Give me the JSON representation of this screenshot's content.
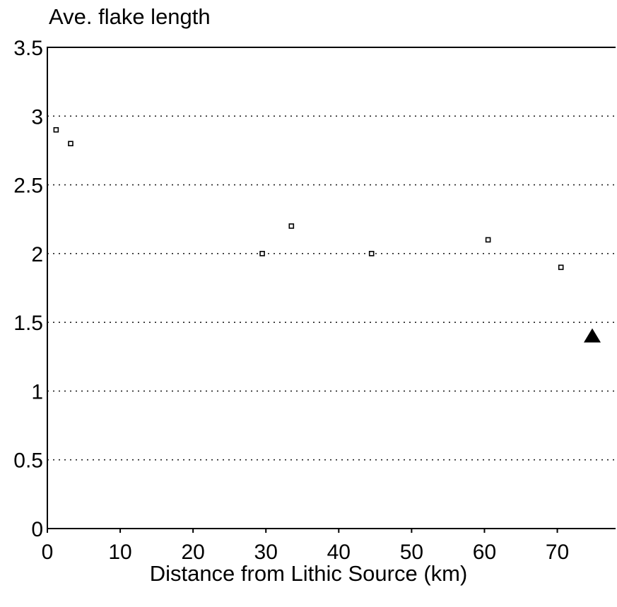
{
  "chart_data": {
    "type": "scatter",
    "ylabel": "Ave. flake length",
    "xlabel": "Distance from Lithic Source (km)",
    "xlim": [
      0,
      78
    ],
    "ylim": [
      0,
      3.5
    ],
    "x_ticks": [
      0,
      10,
      20,
      30,
      40,
      50,
      60,
      70
    ],
    "y_ticks": [
      0,
      0.5,
      1,
      1.5,
      2,
      2.5,
      3,
      3.5
    ],
    "y_tick_labels": [
      "0",
      "0.5",
      "1",
      "1.5",
      "2",
      "2.5",
      "3",
      "3.5"
    ],
    "grid": "horizontal dotted",
    "series": [
      {
        "marker": "small-open-square",
        "points": [
          {
            "x": 1.2,
            "y": 2.9
          },
          {
            "x": 3.2,
            "y": 2.8
          },
          {
            "x": 29.5,
            "y": 2.0
          },
          {
            "x": 33.5,
            "y": 2.2
          },
          {
            "x": 44.5,
            "y": 2.0
          },
          {
            "x": 60.5,
            "y": 2.1
          },
          {
            "x": 70.5,
            "y": 1.9
          }
        ]
      },
      {
        "marker": "filled-triangle",
        "points": [
          {
            "x": 74.8,
            "y": 1.4
          }
        ]
      }
    ]
  }
}
